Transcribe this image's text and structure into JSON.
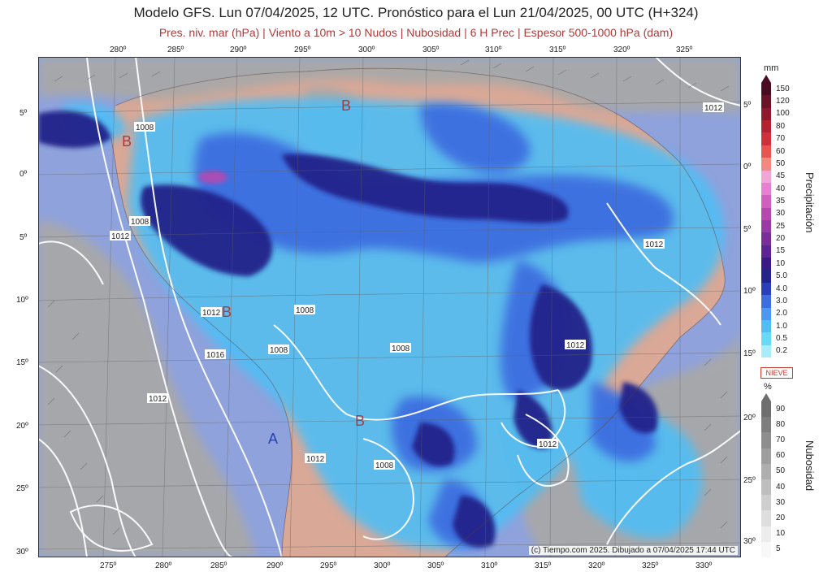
{
  "title": "Modelo GFS. Lun 07/04/2025, 12 UTC. Pronóstico para el Lun 21/04/2025, 00 UTC (H+324)",
  "subtitle": "Pres. niv. mar (hPa) | Viento a 10m > 10 Nudos | Nubosidad | 6 H Prec | Espesor 500-1000 hPa (dam)",
  "lon_top": [
    "280º",
    "285º",
    "290º",
    "295º",
    "300º",
    "305º",
    "310º",
    "315º",
    "320º",
    "325º"
  ],
  "lon_bottom": [
    "275º",
    "280º",
    "285º",
    "290º",
    "295º",
    "300º",
    "305º",
    "310º",
    "315º",
    "320º",
    "325º",
    "330º"
  ],
  "lat_left": [
    "5º",
    "0º",
    "5º",
    "10º",
    "15º",
    "20º",
    "25º",
    "30º"
  ],
  "lat_right": [
    "5º",
    "0º",
    "5º",
    "10º",
    "15º",
    "20º",
    "25º",
    "30º"
  ],
  "pressure_labels": [
    {
      "text": "1012",
      "kind": "iso"
    },
    {
      "text": "1008",
      "kind": "iso"
    },
    {
      "text": "1012",
      "kind": "iso"
    },
    {
      "text": "1008",
      "kind": "iso"
    },
    {
      "text": "1012",
      "kind": "iso"
    },
    {
      "text": "1016",
      "kind": "iso"
    },
    {
      "text": "1008",
      "kind": "iso"
    },
    {
      "text": "1008",
      "kind": "iso"
    },
    {
      "text": "1012",
      "kind": "iso"
    },
    {
      "text": "1012",
      "kind": "iso"
    },
    {
      "text": "1012",
      "kind": "iso"
    },
    {
      "text": "1012",
      "kind": "iso"
    },
    {
      "text": "1012",
      "kind": "iso"
    },
    {
      "text": "1008",
      "kind": "iso"
    },
    {
      "text": "1008",
      "kind": "iso"
    }
  ],
  "centers": [
    "B",
    "B",
    "B",
    "B",
    "A"
  ],
  "precip_legend": {
    "unit": "mm",
    "title": "Precipitación",
    "levels": [
      "150",
      "120",
      "100",
      "80",
      "70",
      "60",
      "50",
      "45",
      "40",
      "35",
      "30",
      "25",
      "20",
      "15",
      "10",
      "5.0",
      "4.0",
      "3.0",
      "2.0",
      "1.0",
      "0.5",
      "0.2"
    ],
    "colors": [
      "#4a0c22",
      "#6a1428",
      "#8c1b2c",
      "#b22230",
      "#d0303a",
      "#e8544e",
      "#f08a80",
      "#f2a6d8",
      "#e680d0",
      "#d060c0",
      "#b648b0",
      "#9a3aa4",
      "#7c2e98",
      "#5e2490",
      "#3b1a86",
      "#24248a",
      "#2a3fb8",
      "#3c6ee0",
      "#4a98f0",
      "#50bef5",
      "#6ad8f8",
      "#a8ecfc"
    ]
  },
  "snow_label": "NIEVE",
  "cloud_legend": {
    "unit": "%",
    "title": "Nubosidad",
    "levels": [
      "90",
      "80",
      "70",
      "60",
      "50",
      "40",
      "30",
      "20",
      "10",
      "5"
    ],
    "colors": [
      "#6e6e6e",
      "#7e7e7e",
      "#8e8e8e",
      "#9e9e9e",
      "#aeaeae",
      "#bebebe",
      "#cecece",
      "#dedede",
      "#ececec",
      "#f8f8f8"
    ]
  },
  "credit": "(c) Tiempo.com 2025. Dibujado a 07/04/2025 17:44 UTC",
  "colors": {
    "ocean": "#8fa2dc",
    "land": "#d9a896",
    "cloud": "#a8a8a8",
    "isobar": "#ffffff"
  }
}
